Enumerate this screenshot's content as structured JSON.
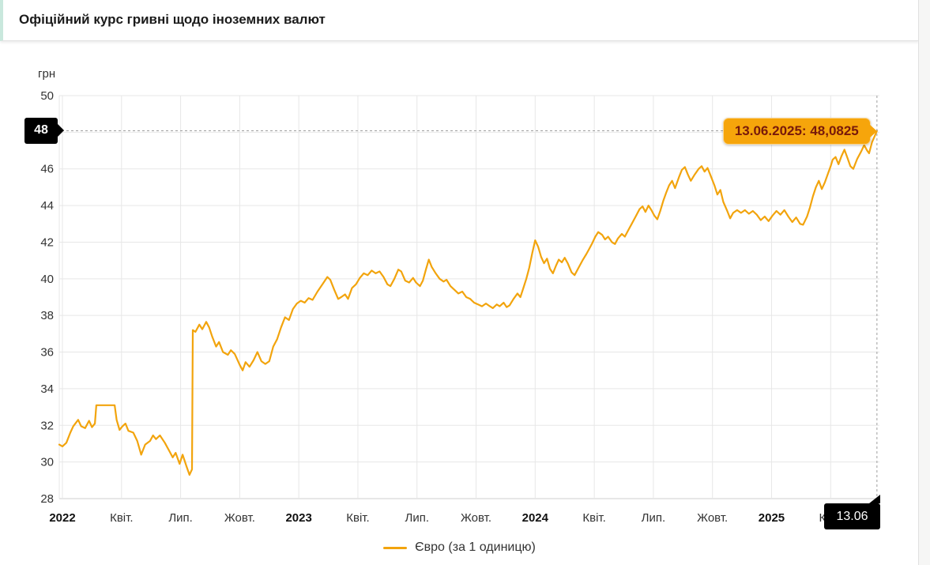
{
  "header": {
    "title": "Офіційний курс гривні щодо іноземних валют",
    "accent_color": "#c9e8dd"
  },
  "chart": {
    "unit_label": "грн"
  },
  "crosshair": {
    "y_label": "48",
    "x_label": "13.06",
    "tooltip": "13.06.2025: 48,0825",
    "date": "13.06.2025",
    "value": "48,0825"
  },
  "legend": {
    "items": [
      {
        "label": "Євро (за 1 одиницю)",
        "color": "#f2a40d"
      }
    ]
  },
  "chart_data": {
    "type": "line",
    "title": "Офіційний курс гривні щодо іноземних валют",
    "ylabel": "грн",
    "ylim": [
      28,
      50
    ],
    "y_ticks": [
      28,
      30,
      32,
      34,
      36,
      38,
      40,
      42,
      44,
      46,
      48,
      50
    ],
    "x_ticks": [
      {
        "t": 0,
        "label": "2022",
        "bold": true
      },
      {
        "t": 3,
        "label": "Квіт."
      },
      {
        "t": 6,
        "label": "Лип."
      },
      {
        "t": 9,
        "label": "Жовт."
      },
      {
        "t": 12,
        "label": "2023",
        "bold": true
      },
      {
        "t": 15,
        "label": "Квіт."
      },
      {
        "t": 18,
        "label": "Лип."
      },
      {
        "t": 21,
        "label": "Жовт."
      },
      {
        "t": 24,
        "label": "2024",
        "bold": true
      },
      {
        "t": 27,
        "label": "Квіт."
      },
      {
        "t": 30,
        "label": "Лип."
      },
      {
        "t": 33,
        "label": "Жовт."
      },
      {
        "t": 36,
        "label": "2025",
        "bold": true
      },
      {
        "t": 39,
        "label": "Квіт."
      }
    ],
    "grid": true,
    "line_color": "#f2a40d",
    "crosshair_color": "#9e9e9e",
    "grid_color": "#e7e7e7",
    "axis_color": "#cfcfcf",
    "legend_position": "bottom",
    "highlight": {
      "t": 41.35,
      "value": 48.0825,
      "date": "13.06.2025"
    },
    "series": [
      {
        "name": "Євро (за 1 одиницю)",
        "x_unit_note": "t = months from first tick (2022)",
        "points": [
          [
            -0.16,
            30.95
          ],
          [
            0,
            30.85
          ],
          [
            0.2,
            31.05
          ],
          [
            0.4,
            31.6
          ],
          [
            0.55,
            31.95
          ],
          [
            0.8,
            32.3
          ],
          [
            0.95,
            31.95
          ],
          [
            1.15,
            31.85
          ],
          [
            1.35,
            32.25
          ],
          [
            1.5,
            31.9
          ],
          [
            1.65,
            32.1
          ],
          [
            1.72,
            33.1
          ],
          [
            2.65,
            33.1
          ],
          [
            2.75,
            32.3
          ],
          [
            2.9,
            31.75
          ],
          [
            3.05,
            31.95
          ],
          [
            3.2,
            32.1
          ],
          [
            3.35,
            31.7
          ],
          [
            3.6,
            31.6
          ],
          [
            3.8,
            31.15
          ],
          [
            4,
            30.4
          ],
          [
            4.2,
            30.95
          ],
          [
            4.45,
            31.15
          ],
          [
            4.6,
            31.45
          ],
          [
            4.75,
            31.25
          ],
          [
            4.95,
            31.45
          ],
          [
            5.2,
            31.05
          ],
          [
            5.45,
            30.55
          ],
          [
            5.6,
            30.25
          ],
          [
            5.75,
            30.5
          ],
          [
            5.95,
            29.9
          ],
          [
            6.1,
            30.4
          ],
          [
            6.3,
            29.75
          ],
          [
            6.45,
            29.3
          ],
          [
            6.58,
            29.6
          ],
          [
            6.62,
            37.2
          ],
          [
            6.75,
            37.1
          ],
          [
            6.95,
            37.5
          ],
          [
            7.1,
            37.25
          ],
          [
            7.3,
            37.65
          ],
          [
            7.45,
            37.35
          ],
          [
            7.6,
            36.85
          ],
          [
            7.8,
            36.3
          ],
          [
            7.95,
            36.55
          ],
          [
            8.15,
            36
          ],
          [
            8.4,
            35.85
          ],
          [
            8.55,
            36.1
          ],
          [
            8.75,
            35.9
          ],
          [
            9,
            35.3
          ],
          [
            9.15,
            35
          ],
          [
            9.3,
            35.45
          ],
          [
            9.5,
            35.2
          ],
          [
            9.7,
            35.55
          ],
          [
            9.9,
            36
          ],
          [
            10.1,
            35.5
          ],
          [
            10.3,
            35.35
          ],
          [
            10.5,
            35.5
          ],
          [
            10.7,
            36.3
          ],
          [
            10.9,
            36.7
          ],
          [
            11.1,
            37.35
          ],
          [
            11.3,
            37.9
          ],
          [
            11.5,
            37.75
          ],
          [
            11.7,
            38.35
          ],
          [
            11.9,
            38.65
          ],
          [
            12.1,
            38.8
          ],
          [
            12.3,
            38.7
          ],
          [
            12.5,
            38.95
          ],
          [
            12.7,
            38.85
          ],
          [
            12.95,
            39.3
          ],
          [
            13.2,
            39.7
          ],
          [
            13.45,
            40.1
          ],
          [
            13.6,
            39.95
          ],
          [
            13.8,
            39.4
          ],
          [
            14,
            38.9
          ],
          [
            14.15,
            39
          ],
          [
            14.35,
            39.15
          ],
          [
            14.5,
            38.9
          ],
          [
            14.7,
            39.5
          ],
          [
            14.9,
            39.7
          ],
          [
            15.1,
            40.05
          ],
          [
            15.3,
            40.3
          ],
          [
            15.5,
            40.2
          ],
          [
            15.7,
            40.45
          ],
          [
            15.9,
            40.3
          ],
          [
            16.1,
            40.4
          ],
          [
            16.3,
            40.1
          ],
          [
            16.5,
            39.7
          ],
          [
            16.65,
            39.6
          ],
          [
            16.85,
            40
          ],
          [
            17.05,
            40.5
          ],
          [
            17.2,
            40.4
          ],
          [
            17.4,
            39.9
          ],
          [
            17.6,
            39.8
          ],
          [
            17.8,
            40.05
          ],
          [
            17.95,
            39.8
          ],
          [
            18.15,
            39.6
          ],
          [
            18.3,
            39.9
          ],
          [
            18.45,
            40.5
          ],
          [
            18.6,
            41.05
          ],
          [
            18.75,
            40.65
          ],
          [
            18.95,
            40.3
          ],
          [
            19.15,
            40
          ],
          [
            19.35,
            39.85
          ],
          [
            19.5,
            39.95
          ],
          [
            19.7,
            39.6
          ],
          [
            19.9,
            39.4
          ],
          [
            20.1,
            39.2
          ],
          [
            20.3,
            39.3
          ],
          [
            20.5,
            39
          ],
          [
            20.7,
            38.9
          ],
          [
            20.9,
            38.7
          ],
          [
            21.1,
            38.6
          ],
          [
            21.3,
            38.5
          ],
          [
            21.5,
            38.65
          ],
          [
            21.7,
            38.5
          ],
          [
            21.85,
            38.4
          ],
          [
            22.05,
            38.6
          ],
          [
            22.2,
            38.5
          ],
          [
            22.4,
            38.7
          ],
          [
            22.55,
            38.45
          ],
          [
            22.7,
            38.55
          ],
          [
            22.9,
            38.9
          ],
          [
            23.1,
            39.2
          ],
          [
            23.25,
            39
          ],
          [
            23.4,
            39.5
          ],
          [
            23.55,
            40
          ],
          [
            23.7,
            40.6
          ],
          [
            23.85,
            41.4
          ],
          [
            24,
            42.1
          ],
          [
            24.15,
            41.75
          ],
          [
            24.3,
            41.2
          ],
          [
            24.45,
            40.85
          ],
          [
            24.6,
            41.1
          ],
          [
            24.75,
            40.55
          ],
          [
            24.9,
            40.3
          ],
          [
            25.05,
            40.7
          ],
          [
            25.2,
            41.05
          ],
          [
            25.35,
            40.9
          ],
          [
            25.5,
            41.15
          ],
          [
            25.65,
            40.85
          ],
          [
            25.85,
            40.35
          ],
          [
            26,
            40.2
          ],
          [
            26.2,
            40.6
          ],
          [
            26.4,
            41
          ],
          [
            26.6,
            41.35
          ],
          [
            26.75,
            41.65
          ],
          [
            26.9,
            41.95
          ],
          [
            27.05,
            42.3
          ],
          [
            27.2,
            42.55
          ],
          [
            27.4,
            42.4
          ],
          [
            27.55,
            42.15
          ],
          [
            27.7,
            42.3
          ],
          [
            27.9,
            42
          ],
          [
            28.05,
            41.9
          ],
          [
            28.2,
            42.2
          ],
          [
            28.4,
            42.45
          ],
          [
            28.55,
            42.3
          ],
          [
            28.7,
            42.6
          ],
          [
            28.9,
            43
          ],
          [
            29.1,
            43.4
          ],
          [
            29.3,
            43.8
          ],
          [
            29.45,
            43.95
          ],
          [
            29.6,
            43.65
          ],
          [
            29.75,
            44
          ],
          [
            29.9,
            43.75
          ],
          [
            30.05,
            43.45
          ],
          [
            30.2,
            43.25
          ],
          [
            30.35,
            43.7
          ],
          [
            30.5,
            44.25
          ],
          [
            30.65,
            44.7
          ],
          [
            30.8,
            45.1
          ],
          [
            30.95,
            45.35
          ],
          [
            31.1,
            44.95
          ],
          [
            31.3,
            45.55
          ],
          [
            31.45,
            45.95
          ],
          [
            31.6,
            46.1
          ],
          [
            31.75,
            45.7
          ],
          [
            31.9,
            45.35
          ],
          [
            32.1,
            45.7
          ],
          [
            32.3,
            46
          ],
          [
            32.45,
            46.15
          ],
          [
            32.6,
            45.85
          ],
          [
            32.75,
            46.05
          ],
          [
            32.9,
            45.65
          ],
          [
            33.1,
            45.1
          ],
          [
            33.25,
            44.6
          ],
          [
            33.4,
            44.85
          ],
          [
            33.55,
            44.2
          ],
          [
            33.75,
            43.7
          ],
          [
            33.9,
            43.3
          ],
          [
            34.05,
            43.6
          ],
          [
            34.25,
            43.75
          ],
          [
            34.45,
            43.6
          ],
          [
            34.65,
            43.75
          ],
          [
            34.85,
            43.55
          ],
          [
            35.05,
            43.7
          ],
          [
            35.25,
            43.5
          ],
          [
            35.45,
            43.2
          ],
          [
            35.65,
            43.4
          ],
          [
            35.85,
            43.15
          ],
          [
            36.05,
            43.45
          ],
          [
            36.25,
            43.7
          ],
          [
            36.45,
            43.5
          ],
          [
            36.65,
            43.75
          ],
          [
            36.85,
            43.4
          ],
          [
            37.05,
            43.1
          ],
          [
            37.25,
            43.35
          ],
          [
            37.45,
            43
          ],
          [
            37.6,
            42.95
          ],
          [
            37.8,
            43.4
          ],
          [
            37.95,
            43.9
          ],
          [
            38.1,
            44.5
          ],
          [
            38.25,
            45
          ],
          [
            38.4,
            45.35
          ],
          [
            38.55,
            44.9
          ],
          [
            38.7,
            45.25
          ],
          [
            38.85,
            45.7
          ],
          [
            39,
            46.15
          ],
          [
            39.1,
            46.5
          ],
          [
            39.25,
            46.65
          ],
          [
            39.4,
            46.25
          ],
          [
            39.55,
            46.7
          ],
          [
            39.7,
            47.05
          ],
          [
            39.85,
            46.6
          ],
          [
            40,
            46.15
          ],
          [
            40.15,
            46
          ],
          [
            40.35,
            46.55
          ],
          [
            40.55,
            46.95
          ],
          [
            40.7,
            47.3
          ],
          [
            40.85,
            47
          ],
          [
            40.95,
            46.85
          ],
          [
            41.1,
            47.45
          ],
          [
            41.35,
            48.0825
          ]
        ]
      }
    ]
  }
}
